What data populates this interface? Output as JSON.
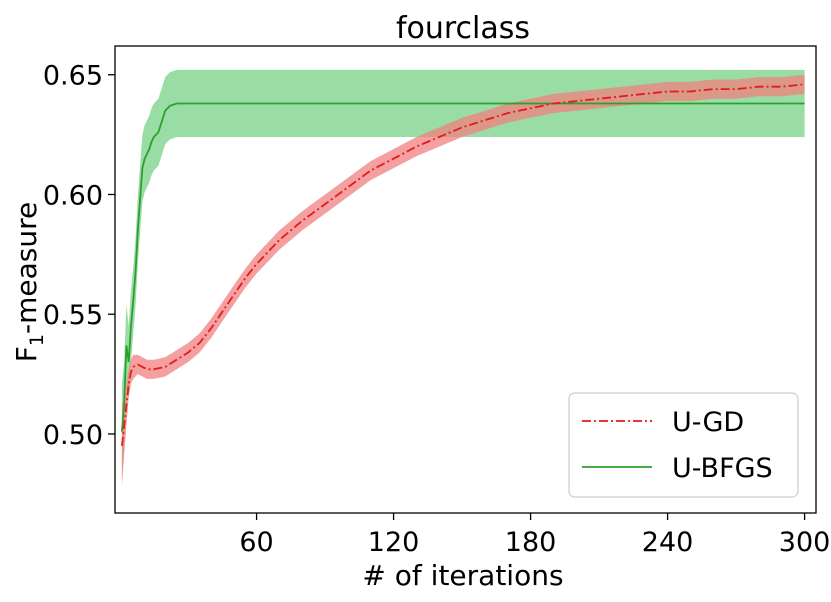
{
  "chart_data": {
    "type": "line",
    "title": "fourclass",
    "xlabel": "# of iterations",
    "ylabel_main": "F",
    "ylabel_sub": "1",
    "ylabel_rest": "-measure",
    "xlim": [
      -2,
      305
    ],
    "ylim": [
      0.467,
      0.662
    ],
    "xticks": [
      60,
      120,
      180,
      240,
      300
    ],
    "xtick_labels": [
      "60",
      "120",
      "180",
      "240",
      "300"
    ],
    "yticks": [
      0.5,
      0.55,
      0.6,
      0.65
    ],
    "ytick_labels": [
      "0.50",
      "0.55",
      "0.60",
      "0.65"
    ],
    "grid": false,
    "legend_position": "bottom-right",
    "series": [
      {
        "name": "U-GD",
        "color": "#e41a1c",
        "band_color": "#f08080",
        "style": "dash-dot",
        "x": [
          1,
          2,
          3,
          4,
          5,
          6,
          8,
          10,
          12,
          15,
          20,
          25,
          30,
          35,
          40,
          45,
          50,
          55,
          60,
          70,
          80,
          90,
          100,
          110,
          120,
          130,
          140,
          150,
          160,
          170,
          180,
          190,
          200,
          210,
          220,
          230,
          240,
          250,
          260,
          270,
          280,
          290,
          300
        ],
        "y": [
          0.495,
          0.503,
          0.512,
          0.521,
          0.526,
          0.528,
          0.529,
          0.528,
          0.527,
          0.527,
          0.528,
          0.531,
          0.534,
          0.538,
          0.544,
          0.551,
          0.558,
          0.565,
          0.571,
          0.581,
          0.589,
          0.596,
          0.603,
          0.61,
          0.615,
          0.62,
          0.624,
          0.628,
          0.631,
          0.634,
          0.636,
          0.638,
          0.639,
          0.64,
          0.641,
          0.642,
          0.643,
          0.643,
          0.644,
          0.644,
          0.645,
          0.645,
          0.646
        ],
        "band": [
          0.017,
          0.012,
          0.009,
          0.006,
          0.005,
          0.005,
          0.004,
          0.004,
          0.004,
          0.004,
          0.004,
          0.004,
          0.004,
          0.004,
          0.004,
          0.004,
          0.004,
          0.004,
          0.004,
          0.004,
          0.004,
          0.004,
          0.004,
          0.004,
          0.004,
          0.004,
          0.004,
          0.004,
          0.004,
          0.004,
          0.004,
          0.004,
          0.004,
          0.004,
          0.004,
          0.004,
          0.004,
          0.004,
          0.004,
          0.004,
          0.004,
          0.004,
          0.004
        ]
      },
      {
        "name": "U-BFGS",
        "color": "#2ca02c",
        "band_color": "#8fd99a",
        "style": "solid",
        "x": [
          1,
          2,
          3,
          4,
          5,
          6,
          7,
          8,
          9,
          10,
          11,
          12,
          13,
          14,
          15,
          16,
          17,
          18,
          19,
          20,
          22,
          25,
          30,
          50,
          100,
          150,
          200,
          250,
          300
        ],
        "y": [
          0.501,
          0.512,
          0.537,
          0.53,
          0.545,
          0.556,
          0.568,
          0.585,
          0.598,
          0.611,
          0.615,
          0.617,
          0.619,
          0.622,
          0.624,
          0.625,
          0.626,
          0.629,
          0.632,
          0.635,
          0.637,
          0.638,
          0.638,
          0.638,
          0.638,
          0.638,
          0.638,
          0.638,
          0.638
        ],
        "band": [
          0.02,
          0.018,
          0.017,
          0.015,
          0.015,
          0.014,
          0.014,
          0.014,
          0.014,
          0.014,
          0.014,
          0.014,
          0.014,
          0.014,
          0.014,
          0.014,
          0.014,
          0.014,
          0.014,
          0.014,
          0.014,
          0.014,
          0.014,
          0.014,
          0.014,
          0.014,
          0.014,
          0.014,
          0.014
        ]
      }
    ]
  }
}
